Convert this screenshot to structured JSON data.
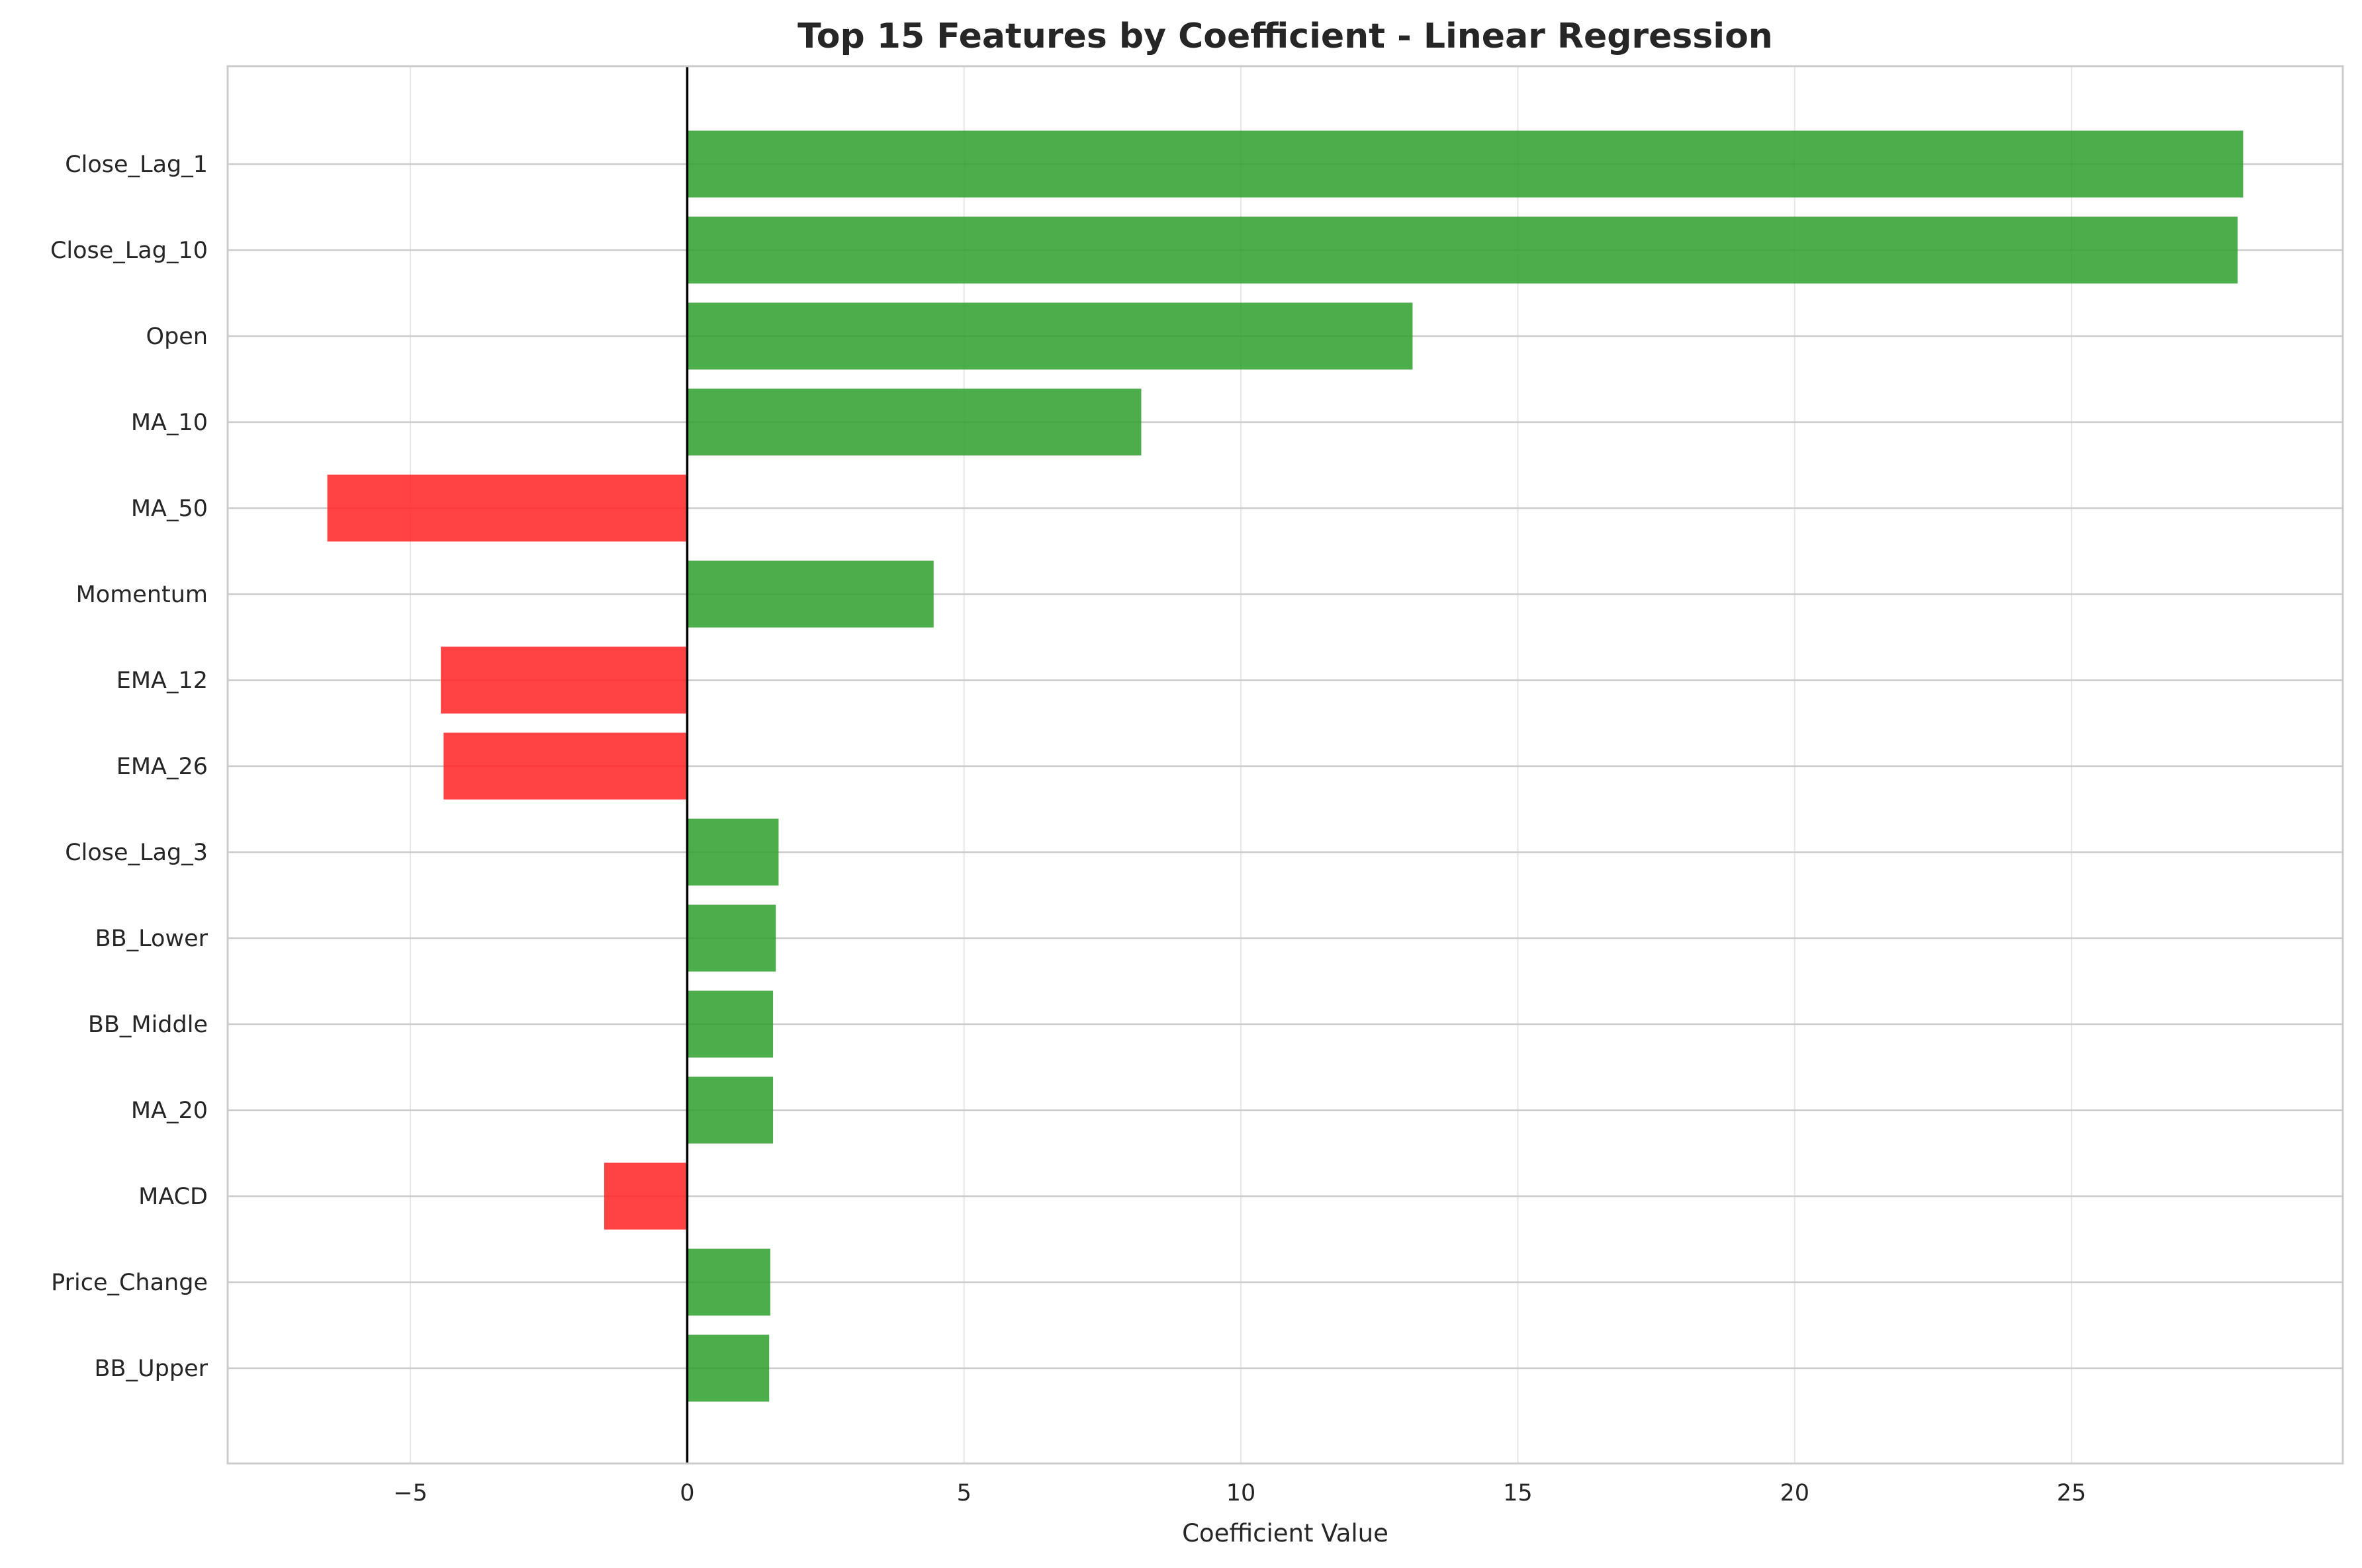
{
  "chart_data": {
    "type": "bar",
    "orientation": "horizontal",
    "title": "Top 15 Features by Coefficient - Linear Regression",
    "xlabel": "Coefficient Value",
    "ylabel": "",
    "xlim": [
      -8.3,
      29.9
    ],
    "x_ticks": [
      -5,
      0,
      5,
      10,
      15,
      20,
      25
    ],
    "x_tick_labels": [
      "−5",
      "0",
      "5",
      "10",
      "15",
      "20",
      "25"
    ],
    "grid": true,
    "zero_line": true,
    "colors": {
      "positive": "#2ca02c",
      "negative": "#ff2222",
      "grid": "#e6e6e6",
      "spine": "#cccccc",
      "zero_line": "#000000"
    },
    "categories": [
      "Close_Lag_1",
      "Close_Lag_10",
      "Open",
      "MA_10",
      "MA_50",
      "Momentum",
      "EMA_12",
      "EMA_26",
      "Close_Lag_3",
      "BB_Lower",
      "BB_Middle",
      "MA_20",
      "MACD",
      "Price_Change",
      "BB_Upper"
    ],
    "values": [
      28.1,
      28.0,
      13.1,
      8.2,
      -6.5,
      4.45,
      -4.45,
      -4.4,
      1.65,
      1.6,
      1.55,
      1.55,
      -1.5,
      1.5,
      1.48
    ]
  }
}
